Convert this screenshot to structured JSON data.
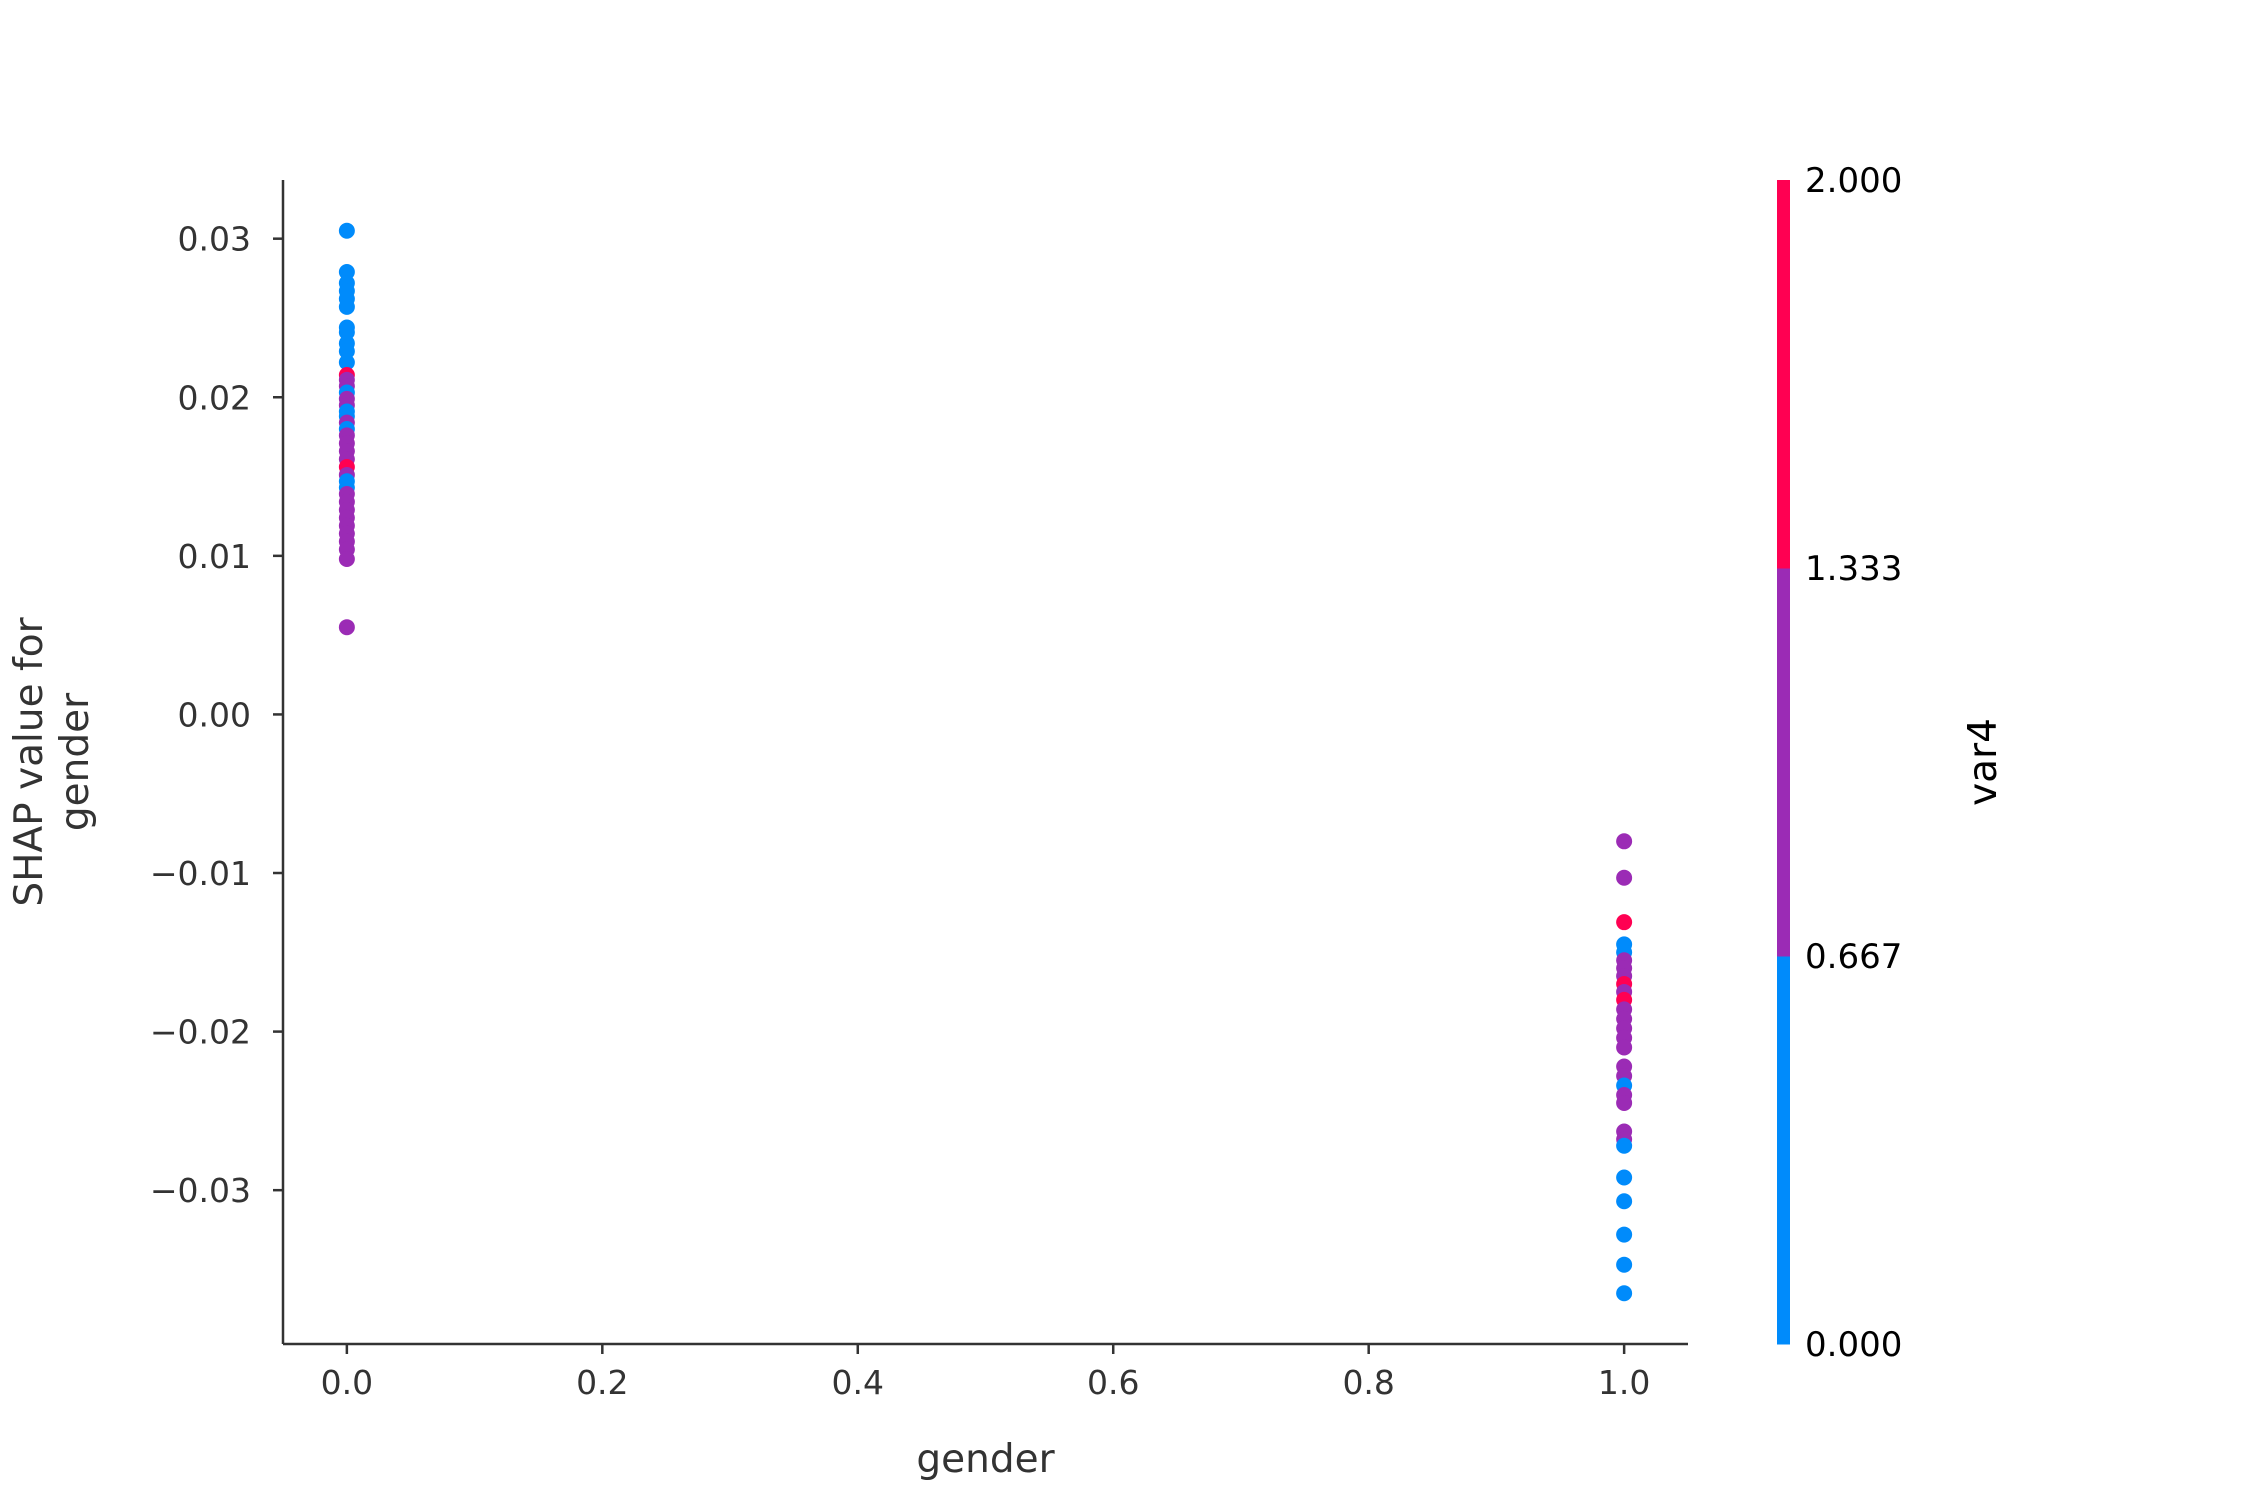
{
  "chart_data": {
    "type": "scatter",
    "title": "",
    "xlabel": "gender",
    "ylabel": "SHAP value for\ngender",
    "xlim": [
      -0.05,
      1.05
    ],
    "ylim": [
      -0.0397,
      0.0337
    ],
    "x_ticks": [
      {
        "value": 0.0,
        "label": "0.0"
      },
      {
        "value": 0.2,
        "label": "0.2"
      },
      {
        "value": 0.4,
        "label": "0.4"
      },
      {
        "value": 0.6,
        "label": "0.6"
      },
      {
        "value": 0.8,
        "label": "0.8"
      },
      {
        "value": 1.0,
        "label": "1.0"
      }
    ],
    "y_ticks": [
      {
        "value": 0.03,
        "label": "0.03"
      },
      {
        "value": 0.02,
        "label": "0.02"
      },
      {
        "value": 0.01,
        "label": "0.01"
      },
      {
        "value": 0.0,
        "label": "0.00"
      },
      {
        "value": -0.01,
        "label": "−0.01"
      },
      {
        "value": -0.02,
        "label": "−0.02"
      },
      {
        "value": -0.03,
        "label": "−0.03"
      }
    ],
    "grid": false,
    "colorbar": {
      "label": "var4",
      "range": [
        0.0,
        2.0
      ],
      "ticks": [
        {
          "value": 0.0,
          "label": "0.000"
        },
        {
          "value": 0.667,
          "label": "0.667"
        },
        {
          "value": 1.333,
          "label": "1.333"
        },
        {
          "value": 2.0,
          "label": "2.000"
        }
      ],
      "colors": [
        "#008bfb",
        "#9b2bb5",
        "#ff0052"
      ]
    },
    "points": [
      {
        "x": 0,
        "y": 0.0305,
        "c": 0
      },
      {
        "x": 0,
        "y": 0.0279,
        "c": 0
      },
      {
        "x": 0,
        "y": 0.0272,
        "c": 0
      },
      {
        "x": 0,
        "y": 0.0267,
        "c": 0
      },
      {
        "x": 0,
        "y": 0.0262,
        "c": 0
      },
      {
        "x": 0,
        "y": 0.0257,
        "c": 0
      },
      {
        "x": 0,
        "y": 0.0244,
        "c": 0
      },
      {
        "x": 0,
        "y": 0.0241,
        "c": 0
      },
      {
        "x": 0,
        "y": 0.0234,
        "c": 0
      },
      {
        "x": 0,
        "y": 0.0229,
        "c": 0
      },
      {
        "x": 0,
        "y": 0.0222,
        "c": 0
      },
      {
        "x": 0,
        "y": 0.0214,
        "c": 2
      },
      {
        "x": 0,
        "y": 0.0211,
        "c": 1
      },
      {
        "x": 0,
        "y": 0.0207,
        "c": 1
      },
      {
        "x": 0,
        "y": 0.0203,
        "c": 0
      },
      {
        "x": 0,
        "y": 0.0199,
        "c": 1
      },
      {
        "x": 0,
        "y": 0.0195,
        "c": 1
      },
      {
        "x": 0,
        "y": 0.0191,
        "c": 0
      },
      {
        "x": 0,
        "y": 0.0188,
        "c": 0
      },
      {
        "x": 0,
        "y": 0.0184,
        "c": 1
      },
      {
        "x": 0,
        "y": 0.018,
        "c": 0
      },
      {
        "x": 0,
        "y": 0.0176,
        "c": 1
      },
      {
        "x": 0,
        "y": 0.0171,
        "c": 1
      },
      {
        "x": 0,
        "y": 0.0166,
        "c": 1
      },
      {
        "x": 0,
        "y": 0.0161,
        "c": 1
      },
      {
        "x": 0,
        "y": 0.0156,
        "c": 2
      },
      {
        "x": 0,
        "y": 0.0151,
        "c": 1
      },
      {
        "x": 0,
        "y": 0.0147,
        "c": 0
      },
      {
        "x": 0,
        "y": 0.0143,
        "c": 0
      },
      {
        "x": 0,
        "y": 0.0139,
        "c": 1
      },
      {
        "x": 0,
        "y": 0.0134,
        "c": 1
      },
      {
        "x": 0,
        "y": 0.0129,
        "c": 1
      },
      {
        "x": 0,
        "y": 0.0124,
        "c": 1
      },
      {
        "x": 0,
        "y": 0.0119,
        "c": 1
      },
      {
        "x": 0,
        "y": 0.0114,
        "c": 1
      },
      {
        "x": 0,
        "y": 0.0109,
        "c": 1
      },
      {
        "x": 0,
        "y": 0.0104,
        "c": 1
      },
      {
        "x": 0,
        "y": 0.0098,
        "c": 1
      },
      {
        "x": 0,
        "y": 0.0055,
        "c": 1
      },
      {
        "x": 1,
        "y": -0.008,
        "c": 1
      },
      {
        "x": 1,
        "y": -0.0103,
        "c": 1
      },
      {
        "x": 1,
        "y": -0.0131,
        "c": 2
      },
      {
        "x": 1,
        "y": -0.0145,
        "c": 0
      },
      {
        "x": 1,
        "y": -0.015,
        "c": 0
      },
      {
        "x": 1,
        "y": -0.0155,
        "c": 1
      },
      {
        "x": 1,
        "y": -0.016,
        "c": 1
      },
      {
        "x": 1,
        "y": -0.0165,
        "c": 1
      },
      {
        "x": 1,
        "y": -0.017,
        "c": 2
      },
      {
        "x": 1,
        "y": -0.0175,
        "c": 1
      },
      {
        "x": 1,
        "y": -0.018,
        "c": 2
      },
      {
        "x": 1,
        "y": -0.0186,
        "c": 1
      },
      {
        "x": 1,
        "y": -0.0192,
        "c": 1
      },
      {
        "x": 1,
        "y": -0.0198,
        "c": 1
      },
      {
        "x": 1,
        "y": -0.0204,
        "c": 1
      },
      {
        "x": 1,
        "y": -0.021,
        "c": 1
      },
      {
        "x": 1,
        "y": -0.0222,
        "c": 1
      },
      {
        "x": 1,
        "y": -0.0228,
        "c": 1
      },
      {
        "x": 1,
        "y": -0.0234,
        "c": 0
      },
      {
        "x": 1,
        "y": -0.024,
        "c": 1
      },
      {
        "x": 1,
        "y": -0.0245,
        "c": 1
      },
      {
        "x": 1,
        "y": -0.0263,
        "c": 1
      },
      {
        "x": 1,
        "y": -0.0268,
        "c": 1
      },
      {
        "x": 1,
        "y": -0.0272,
        "c": 0
      },
      {
        "x": 1,
        "y": -0.0292,
        "c": 0
      },
      {
        "x": 1,
        "y": -0.0307,
        "c": 0
      },
      {
        "x": 1,
        "y": -0.0328,
        "c": 0
      },
      {
        "x": 1,
        "y": -0.0347,
        "c": 0
      },
      {
        "x": 1,
        "y": -0.0365,
        "c": 0
      }
    ]
  }
}
